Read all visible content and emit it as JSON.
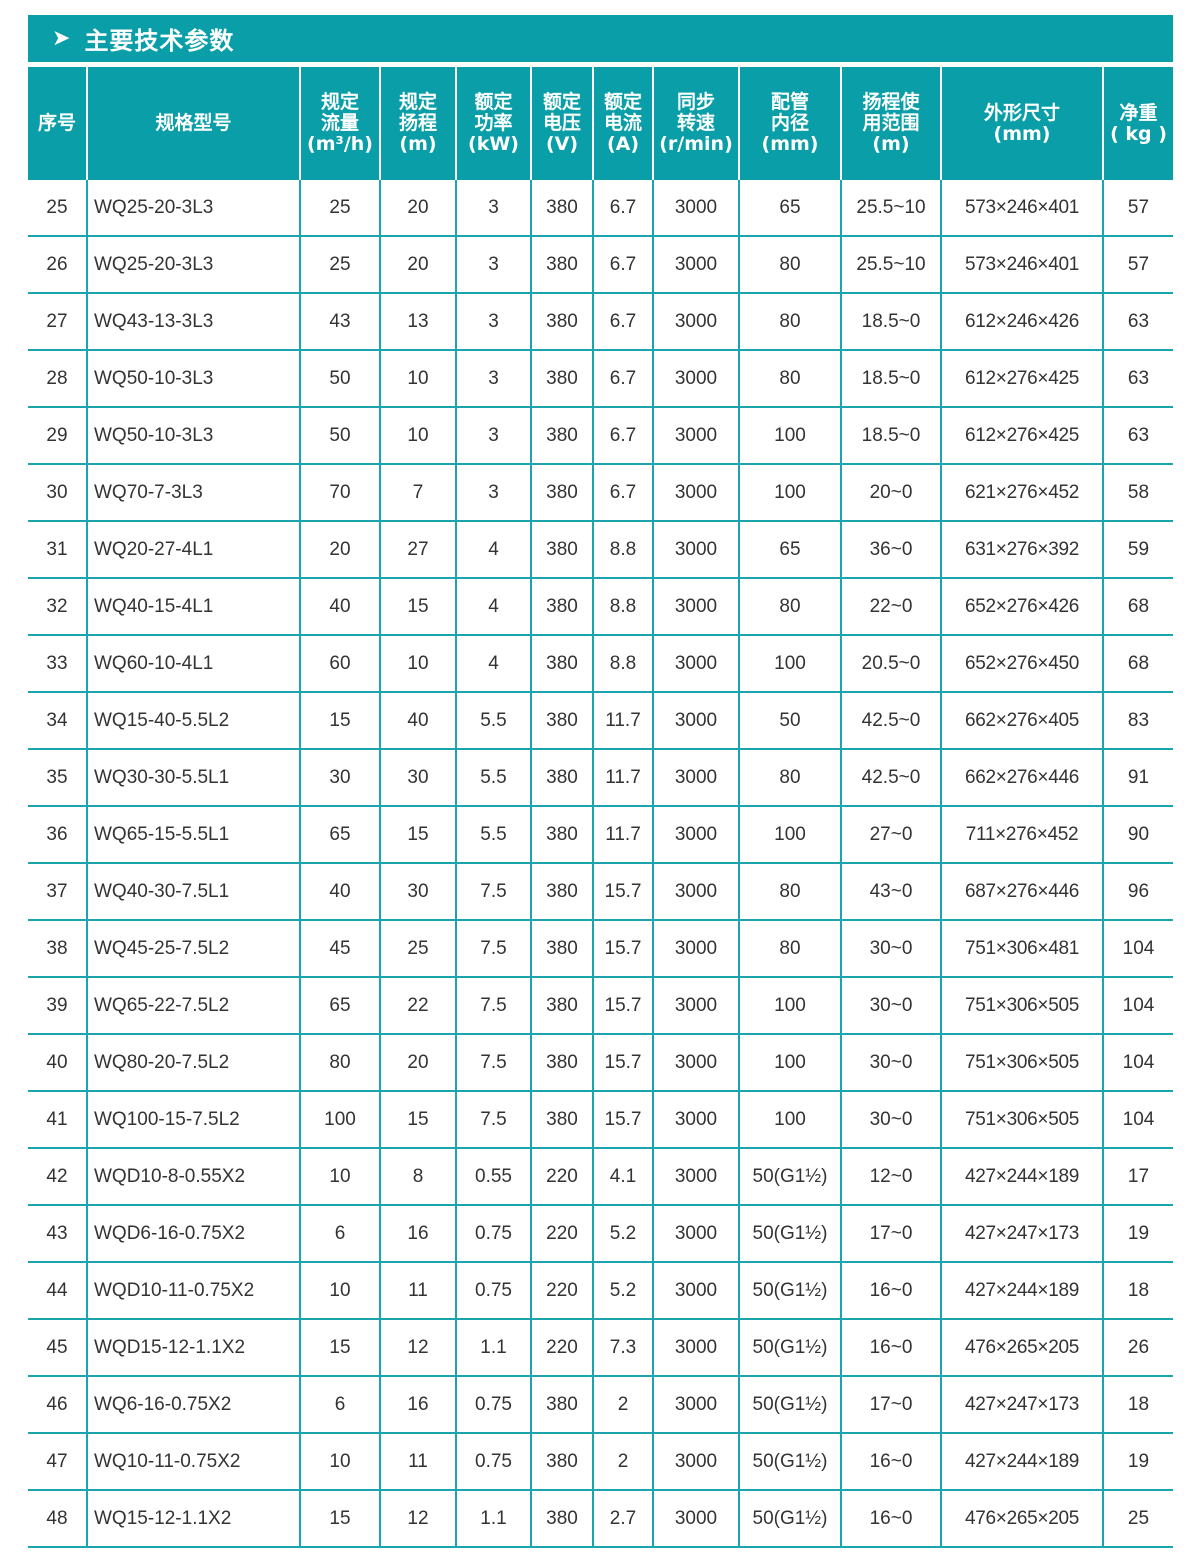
{
  "section": {
    "icon": "chevron-right-icon",
    "title": "主要技术参数"
  },
  "colors": {
    "accent": "#0a9fa8",
    "grid": "#1aa4ad"
  },
  "columns": [
    [
      "序号"
    ],
    [
      "规格型号"
    ],
    [
      "规定",
      "流量",
      "(m³/h)"
    ],
    [
      "规定",
      "扬程",
      "(m)"
    ],
    [
      "额定",
      "功率",
      "(kW)"
    ],
    [
      "额定",
      "电压",
      "(V)"
    ],
    [
      "额定",
      "电流",
      "(A)"
    ],
    [
      "同步",
      "转速",
      "(r/min)"
    ],
    [
      "配管",
      "内径",
      "(mm)"
    ],
    [
      "扬程使",
      "用范围",
      "(m)"
    ],
    [
      "外形尺寸",
      "(mm)"
    ],
    [
      "净重",
      "( kg )"
    ]
  ],
  "rows": [
    [
      "25",
      "WQ25-20-3L3",
      "25",
      "20",
      "3",
      "380",
      "6.7",
      "3000",
      "65",
      "25.5~10",
      "573×246×401",
      "57"
    ],
    [
      "26",
      "WQ25-20-3L3",
      "25",
      "20",
      "3",
      "380",
      "6.7",
      "3000",
      "80",
      "25.5~10",
      "573×246×401",
      "57"
    ],
    [
      "27",
      "WQ43-13-3L3",
      "43",
      "13",
      "3",
      "380",
      "6.7",
      "3000",
      "80",
      "18.5~0",
      "612×246×426",
      "63"
    ],
    [
      "28",
      "WQ50-10-3L3",
      "50",
      "10",
      "3",
      "380",
      "6.7",
      "3000",
      "80",
      "18.5~0",
      "612×276×425",
      "63"
    ],
    [
      "29",
      "WQ50-10-3L3",
      "50",
      "10",
      "3",
      "380",
      "6.7",
      "3000",
      "100",
      "18.5~0",
      "612×276×425",
      "63"
    ],
    [
      "30",
      "WQ70-7-3L3",
      "70",
      "7",
      "3",
      "380",
      "6.7",
      "3000",
      "100",
      "20~0",
      "621×276×452",
      "58"
    ],
    [
      "31",
      "WQ20-27-4L1",
      "20",
      "27",
      "4",
      "380",
      "8.8",
      "3000",
      "65",
      "36~0",
      "631×276×392",
      "59"
    ],
    [
      "32",
      "WQ40-15-4L1",
      "40",
      "15",
      "4",
      "380",
      "8.8",
      "3000",
      "80",
      "22~0",
      "652×276×426",
      "68"
    ],
    [
      "33",
      "WQ60-10-4L1",
      "60",
      "10",
      "4",
      "380",
      "8.8",
      "3000",
      "100",
      "20.5~0",
      "652×276×450",
      "68"
    ],
    [
      "34",
      "WQ15-40-5.5L2",
      "15",
      "40",
      "5.5",
      "380",
      "11.7",
      "3000",
      "50",
      "42.5~0",
      "662×276×405",
      "83"
    ],
    [
      "35",
      "WQ30-30-5.5L1",
      "30",
      "30",
      "5.5",
      "380",
      "11.7",
      "3000",
      "80",
      "42.5~0",
      "662×276×446",
      "91"
    ],
    [
      "36",
      "WQ65-15-5.5L1",
      "65",
      "15",
      "5.5",
      "380",
      "11.7",
      "3000",
      "100",
      "27~0",
      "711×276×452",
      "90"
    ],
    [
      "37",
      "WQ40-30-7.5L1",
      "40",
      "30",
      "7.5",
      "380",
      "15.7",
      "3000",
      "80",
      "43~0",
      "687×276×446",
      "96"
    ],
    [
      "38",
      "WQ45-25-7.5L2",
      "45",
      "25",
      "7.5",
      "380",
      "15.7",
      "3000",
      "80",
      "30~0",
      "751×306×481",
      "104"
    ],
    [
      "39",
      "WQ65-22-7.5L2",
      "65",
      "22",
      "7.5",
      "380",
      "15.7",
      "3000",
      "100",
      "30~0",
      "751×306×505",
      "104"
    ],
    [
      "40",
      "WQ80-20-7.5L2",
      "80",
      "20",
      "7.5",
      "380",
      "15.7",
      "3000",
      "100",
      "30~0",
      "751×306×505",
      "104"
    ],
    [
      "41",
      "WQ100-15-7.5L2",
      "100",
      "15",
      "7.5",
      "380",
      "15.7",
      "3000",
      "100",
      "30~0",
      "751×306×505",
      "104"
    ],
    [
      "42",
      "WQD10-8-0.55X2",
      "10",
      "8",
      "0.55",
      "220",
      "4.1",
      "3000",
      "50(G1½)",
      "12~0",
      "427×244×189",
      "17"
    ],
    [
      "43",
      "WQD6-16-0.75X2",
      "6",
      "16",
      "0.75",
      "220",
      "5.2",
      "3000",
      "50(G1½)",
      "17~0",
      "427×247×173",
      "19"
    ],
    [
      "44",
      "WQD10-11-0.75X2",
      "10",
      "11",
      "0.75",
      "220",
      "5.2",
      "3000",
      "50(G1½)",
      "16~0",
      "427×244×189",
      "18"
    ],
    [
      "45",
      "WQD15-12-1.1X2",
      "15",
      "12",
      "1.1",
      "220",
      "7.3",
      "3000",
      "50(G1½)",
      "16~0",
      "476×265×205",
      "26"
    ],
    [
      "46",
      "WQ6-16-0.75X2",
      "6",
      "16",
      "0.75",
      "380",
      "2",
      "3000",
      "50(G1½)",
      "17~0",
      "427×247×173",
      "18"
    ],
    [
      "47",
      "WQ10-11-0.75X2",
      "10",
      "11",
      "0.75",
      "380",
      "2",
      "3000",
      "50(G1½)",
      "16~0",
      "427×244×189",
      "19"
    ],
    [
      "48",
      "WQ15-12-1.1X2",
      "15",
      "12",
      "1.1",
      "380",
      "2.7",
      "3000",
      "50(G1½)",
      "16~0",
      "476×265×205",
      "25"
    ]
  ]
}
